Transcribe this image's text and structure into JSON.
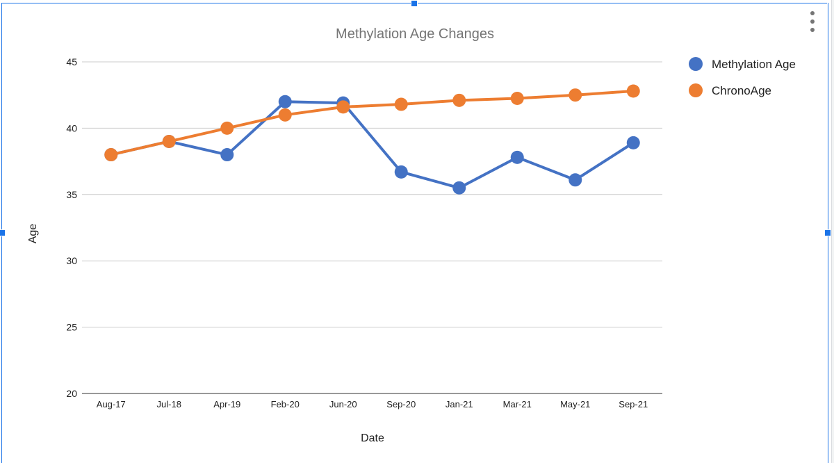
{
  "chart_data": {
    "type": "line",
    "title": "Methylation Age Changes",
    "xlabel": "Date",
    "ylabel": "Age",
    "categories": [
      "Aug-17",
      "Jul-18",
      "Apr-19",
      "Feb-20",
      "Jun-20",
      "Sep-20",
      "Jan-21",
      "Mar-21",
      "May-21",
      "Sep-21"
    ],
    "ylim": [
      20,
      45
    ],
    "yticks": [
      "20",
      "25",
      "30",
      "35",
      "40",
      "45"
    ],
    "grid": true,
    "legend_position": "right",
    "series": [
      {
        "name": "Methylation Age",
        "color": "#4472c4",
        "values": [
          38,
          39,
          38,
          42,
          41.9,
          36.7,
          35.5,
          37.8,
          36.1,
          38.9
        ]
      },
      {
        "name": "ChronoAge",
        "color": "#ed7d31",
        "values": [
          38,
          39,
          40,
          41,
          41.6,
          41.8,
          42.1,
          42.25,
          42.5,
          42.8
        ]
      }
    ]
  },
  "ui": {
    "menu_icon": "more-vert-icon",
    "selection_color": "#1a73e8"
  }
}
